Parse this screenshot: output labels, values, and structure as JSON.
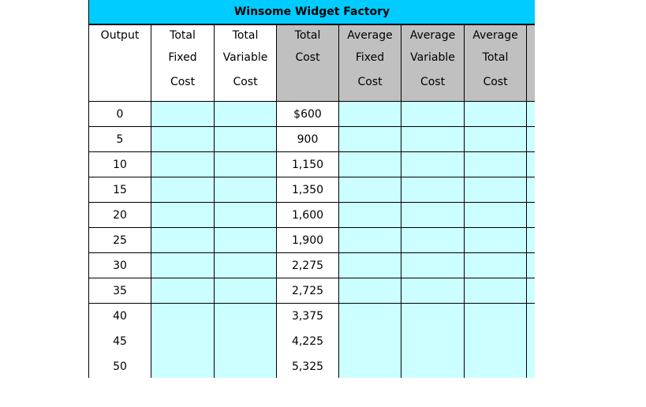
{
  "title": "Winsome Widget Factory",
  "headers": [
    {
      "lines": [
        "Output"
      ]
    },
    {
      "lines": [
        "Total",
        "Fixed",
        "Cost"
      ]
    },
    {
      "lines": [
        "Total",
        "Variable",
        "Cost"
      ]
    },
    {
      "lines": [
        "Total",
        "Cost"
      ]
    },
    {
      "lines": [
        "Average",
        "Fixed",
        "Cost"
      ]
    },
    {
      "lines": [
        "Average",
        "Variable",
        "Cost"
      ]
    },
    {
      "lines": [
        "Average",
        "Total",
        "Cost"
      ]
    }
  ],
  "rows": [
    {
      "output": "0",
      "total_cost": "$600"
    },
    {
      "output": "5",
      "total_cost": "900"
    },
    {
      "output": "10",
      "total_cost": "1,150"
    },
    {
      "output": "15",
      "total_cost": "1,350"
    },
    {
      "output": "20",
      "total_cost": "1,600"
    },
    {
      "output": "25",
      "total_cost": "1,900"
    },
    {
      "output": "30",
      "total_cost": "2,275"
    },
    {
      "output": "35",
      "total_cost": "2,725"
    },
    {
      "output": "40",
      "total_cost": "3,375"
    },
    {
      "output": "45",
      "total_cost": "4,225"
    },
    {
      "output": "50",
      "total_cost": "5,325"
    }
  ],
  "colors": {
    "title_bg": "#00ccff",
    "header_grey": "#c0c0c0",
    "cell_blank": "#ccffff"
  }
}
